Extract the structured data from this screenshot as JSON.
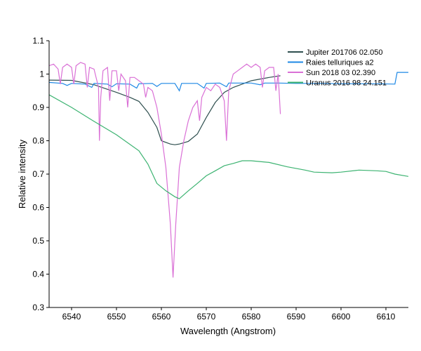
{
  "chart_data": {
    "type": "line",
    "title": "",
    "xlabel": "Wavelength (Angstrom)",
    "ylabel": "Relative intensity",
    "xlim": [
      6535,
      6615
    ],
    "ylim": [
      0.3,
      1.1
    ],
    "x_ticks": [
      6540,
      6550,
      6560,
      6570,
      6580,
      6590,
      6600,
      6610
    ],
    "y_ticks": [
      0.3,
      0.4,
      0.5,
      0.6,
      0.7,
      0.8,
      0.9,
      1,
      1.1
    ],
    "y_tick_labels": [
      "0.3",
      "0.4",
      "0.5",
      "0.6",
      "0.7",
      "0.8",
      "0.9",
      "1",
      "1.1"
    ],
    "grid": false,
    "legend_position": "top-right",
    "series": [
      {
        "name": "Jupiter 201706 02.050",
        "color": "#2f4f4f",
        "points": [
          [
            6535,
            0.982
          ],
          [
            6540,
            0.981
          ],
          [
            6545,
            0.968
          ],
          [
            6550,
            0.945
          ],
          [
            6553,
            0.93
          ],
          [
            6555,
            0.918
          ],
          [
            6557,
            0.885
          ],
          [
            6559,
            0.84
          ],
          [
            6560,
            0.8
          ],
          [
            6562,
            0.79
          ],
          [
            6563,
            0.788
          ],
          [
            6564,
            0.79
          ],
          [
            6566,
            0.798
          ],
          [
            6568,
            0.82
          ],
          [
            6570,
            0.87
          ],
          [
            6572,
            0.915
          ],
          [
            6574,
            0.945
          ],
          [
            6576,
            0.96
          ],
          [
            6578,
            0.97
          ],
          [
            6580,
            0.98
          ],
          [
            6582,
            0.985
          ],
          [
            6584,
            0.99
          ],
          [
            6586.5,
            0.995
          ]
        ]
      },
      {
        "name": "Raies telluriques a2",
        "color": "#1e88e5",
        "points": [
          [
            6535,
            0.975
          ],
          [
            6538,
            0.972
          ],
          [
            6539,
            0.966
          ],
          [
            6540,
            0.972
          ],
          [
            6543,
            0.97
          ],
          [
            6544.5,
            0.96
          ],
          [
            6545,
            0.972
          ],
          [
            6548,
            0.97
          ],
          [
            6549,
            0.962
          ],
          [
            6550,
            0.971
          ],
          [
            6553,
            0.97
          ],
          [
            6554.5,
            0.958
          ],
          [
            6555,
            0.971
          ],
          [
            6558,
            0.972
          ],
          [
            6559,
            0.963
          ],
          [
            6560,
            0.972
          ],
          [
            6563,
            0.972
          ],
          [
            6564,
            0.95
          ],
          [
            6564.5,
            0.972
          ],
          [
            6568,
            0.972
          ],
          [
            6569.5,
            0.958
          ],
          [
            6570,
            0.972
          ],
          [
            6573,
            0.973
          ],
          [
            6574.5,
            0.962
          ],
          [
            6575,
            0.973
          ],
          [
            6578,
            0.973
          ],
          [
            6580,
            0.973
          ],
          [
            6582,
            0.968
          ],
          [
            6583,
            0.973
          ],
          [
            6586,
            0.973
          ],
          [
            6590,
            0.972
          ],
          [
            6593,
            0.972
          ],
          [
            6596,
            0.972
          ],
          [
            6600,
            0.971
          ],
          [
            6604,
            0.971
          ],
          [
            6608,
            0.971
          ],
          [
            6612,
            0.97
          ],
          [
            6612.5,
            1.005
          ],
          [
            6615,
            1.005
          ]
        ]
      },
      {
        "name": "Sun 2018 03 02.390",
        "color": "#da70d6",
        "points": [
          [
            6535,
            1.025
          ],
          [
            6536,
            1.03
          ],
          [
            6537,
            1.015
          ],
          [
            6537.5,
            0.97
          ],
          [
            6538,
            1.02
          ],
          [
            6539,
            1.03
          ],
          [
            6540,
            1.02
          ],
          [
            6540.5,
            0.97
          ],
          [
            6541,
            1.025
          ],
          [
            6542,
            1.035
          ],
          [
            6543,
            1.03
          ],
          [
            6543.5,
            0.96
          ],
          [
            6544,
            1.02
          ],
          [
            6545,
            1.015
          ],
          [
            6546,
            0.96
          ],
          [
            6546.2,
            0.8
          ],
          [
            6546.5,
            0.93
          ],
          [
            6547,
            1.01
          ],
          [
            6548,
            1.02
          ],
          [
            6548.5,
            0.92
          ],
          [
            6549,
            1.01
          ],
          [
            6550,
            1.01
          ],
          [
            6550.5,
            0.95
          ],
          [
            6551,
            1.0
          ],
          [
            6552,
            0.98
          ],
          [
            6552.5,
            0.9
          ],
          [
            6553,
            0.99
          ],
          [
            6554,
            0.99
          ],
          [
            6555,
            0.98
          ],
          [
            6556,
            0.97
          ],
          [
            6556.5,
            0.93
          ],
          [
            6557,
            0.96
          ],
          [
            6558,
            0.95
          ],
          [
            6559,
            0.9
          ],
          [
            6560,
            0.82
          ],
          [
            6561,
            0.72
          ],
          [
            6562,
            0.55
          ],
          [
            6562.6,
            0.39
          ],
          [
            6563.2,
            0.55
          ],
          [
            6564,
            0.72
          ],
          [
            6565,
            0.8
          ],
          [
            6566,
            0.86
          ],
          [
            6567,
            0.9
          ],
          [
            6568,
            0.92
          ],
          [
            6568.5,
            0.86
          ],
          [
            6569,
            0.93
          ],
          [
            6570,
            0.96
          ],
          [
            6571,
            0.95
          ],
          [
            6572,
            0.97
          ],
          [
            6573,
            0.96
          ],
          [
            6574,
            0.92
          ],
          [
            6574.5,
            0.8
          ],
          [
            6575,
            0.95
          ],
          [
            6576,
            1.0
          ],
          [
            6577,
            1.01
          ],
          [
            6578,
            1.02
          ],
          [
            6579,
            1.03
          ],
          [
            6580,
            1.02
          ],
          [
            6581,
            1.03
          ],
          [
            6582,
            1.02
          ],
          [
            6582.5,
            0.96
          ],
          [
            6583,
            1.01
          ],
          [
            6584,
            1.02
          ],
          [
            6585,
            1.02
          ],
          [
            6585.5,
            0.95
          ],
          [
            6586,
            1.0
          ],
          [
            6586.5,
            0.88
          ]
        ]
      },
      {
        "name": "Uranus 2016 98 24.151",
        "color": "#3cb371",
        "points": [
          [
            6535,
            0.938
          ],
          [
            6540,
            0.9
          ],
          [
            6545,
            0.858
          ],
          [
            6550,
            0.818
          ],
          [
            6555,
            0.77
          ],
          [
            6557,
            0.73
          ],
          [
            6559,
            0.672
          ],
          [
            6561,
            0.65
          ],
          [
            6563,
            0.632
          ],
          [
            6564,
            0.626
          ],
          [
            6566,
            0.65
          ],
          [
            6568,
            0.672
          ],
          [
            6570,
            0.695
          ],
          [
            6572,
            0.71
          ],
          [
            6574,
            0.725
          ],
          [
            6576,
            0.732
          ],
          [
            6578,
            0.74
          ],
          [
            6580,
            0.74
          ],
          [
            6584,
            0.735
          ],
          [
            6588,
            0.722
          ],
          [
            6592,
            0.712
          ],
          [
            6594,
            0.706
          ],
          [
            6598,
            0.704
          ],
          [
            6600,
            0.706
          ],
          [
            6604,
            0.712
          ],
          [
            6608,
            0.71
          ],
          [
            6610,
            0.708
          ],
          [
            6612,
            0.7
          ],
          [
            6615,
            0.693
          ]
        ]
      }
    ]
  }
}
